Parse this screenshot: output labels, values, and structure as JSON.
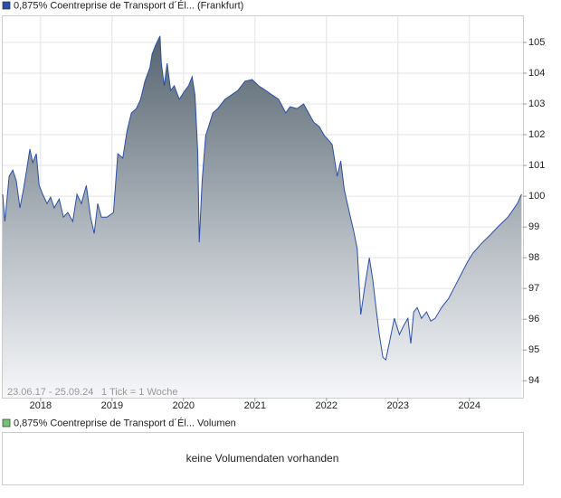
{
  "chart_data": {
    "type": "area",
    "series": [
      {
        "name": "0,875% Coentreprise de Transport d´Él... (Frankfurt)",
        "color": "#2a4fa8",
        "values": [
          100.06,
          99.18,
          100.65,
          100.85,
          100.5,
          99.62,
          100.21,
          100.94,
          101.53,
          101.09,
          101.38,
          100.35,
          100.06,
          99.76,
          99.97,
          99.62,
          99.91,
          99.32,
          99.47,
          99.18,
          100.06,
          99.76,
          100.35,
          99.32,
          98.79,
          99.76,
          99.32,
          99.32,
          99.47,
          101.38,
          101.24,
          102.12,
          102.71,
          102.85,
          103.15,
          103.74,
          104.18,
          104.62,
          104.91,
          105.21,
          104.32,
          103.59,
          104.32,
          103.44,
          103.59,
          103.15,
          103.44,
          103.59,
          103.88,
          103.29,
          101.38,
          98.5,
          100.5,
          101.97,
          102.26,
          102.71,
          102.85,
          103.15,
          103.29,
          103.44,
          103.74,
          103.79,
          103.59,
          103.44,
          103.29,
          103.15,
          102.71,
          102.91,
          102.85,
          103.0,
          102.71,
          102.41,
          102.26,
          101.97,
          101.82,
          101.68,
          100.94,
          100.65,
          101.15,
          100.21,
          99.47,
          98.88,
          98.29,
          96.15,
          96.97,
          98.0,
          97.26,
          96.24,
          95.5,
          94.76,
          94.68,
          95.35,
          96.03,
          95.5,
          95.79,
          96.03,
          95.21,
          96.24,
          96.38,
          96.03,
          96.24,
          95.94,
          96.03,
          96.38,
          96.68,
          97.26,
          97.85,
          98.15,
          98.44,
          98.74,
          99.03,
          99.32,
          99.76,
          100.06
        ]
      }
    ],
    "x": [
      2017.47,
      2017.5,
      2017.56,
      2017.61,
      2017.66,
      2017.71,
      2017.76,
      2017.81,
      2017.85,
      2017.89,
      2017.94,
      2017.98,
      2018.03,
      2018.09,
      2018.14,
      2018.19,
      2018.26,
      2018.32,
      2018.38,
      2018.45,
      2018.51,
      2018.57,
      2018.64,
      2018.7,
      2018.75,
      2018.8,
      2018.85,
      2018.93,
      2019.02,
      2019.08,
      2019.15,
      2019.21,
      2019.27,
      2019.34,
      2019.4,
      2019.46,
      2019.53,
      2019.56,
      2019.61,
      2019.67,
      2019.69,
      2019.73,
      2019.77,
      2019.82,
      2019.87,
      2019.94,
      2020.02,
      2020.07,
      2020.12,
      2020.16,
      2020.2,
      2020.22,
      2020.26,
      2020.31,
      2020.35,
      2020.41,
      2020.48,
      2020.58,
      2020.67,
      2020.76,
      2020.86,
      2020.96,
      2021.05,
      2021.15,
      2021.24,
      2021.33,
      2021.43,
      2021.49,
      2021.59,
      2021.68,
      2021.75,
      2021.82,
      2021.9,
      2021.97,
      2022.03,
      2022.08,
      2022.13,
      2022.15,
      2022.2,
      2022.25,
      2022.32,
      2022.38,
      2022.43,
      2022.48,
      2022.53,
      2022.6,
      2022.65,
      2022.7,
      2022.74,
      2022.79,
      2022.83,
      2022.89,
      2022.95,
      2023.02,
      2023.08,
      2023.14,
      2023.18,
      2023.22,
      2023.27,
      2023.33,
      2023.4,
      2023.46,
      2023.52,
      2023.61,
      2023.71,
      2023.84,
      2023.97,
      2024.05,
      2024.16,
      2024.29,
      2024.41,
      2024.54,
      2024.67,
      2024.73
    ],
    "xlim": [
      2017.47,
      2024.75
    ],
    "xticks": [
      2018,
      2019,
      2020,
      2021,
      2022,
      2023,
      2024
    ],
    "ylim": [
      93.45,
      105.85
    ],
    "yticks": [
      94,
      95,
      96,
      97,
      98,
      99,
      100,
      101,
      102,
      103,
      104,
      105
    ],
    "grid": true,
    "footer": [
      "23.06.17 - 25.09.24",
      "1 Tick = 1 Woche"
    ]
  },
  "volume_panel": {
    "legend": "0,875% Coentreprise de Transport d´Él... Volumen",
    "color": "#6fc46f",
    "message": "keine Volumendaten vorhanden"
  }
}
